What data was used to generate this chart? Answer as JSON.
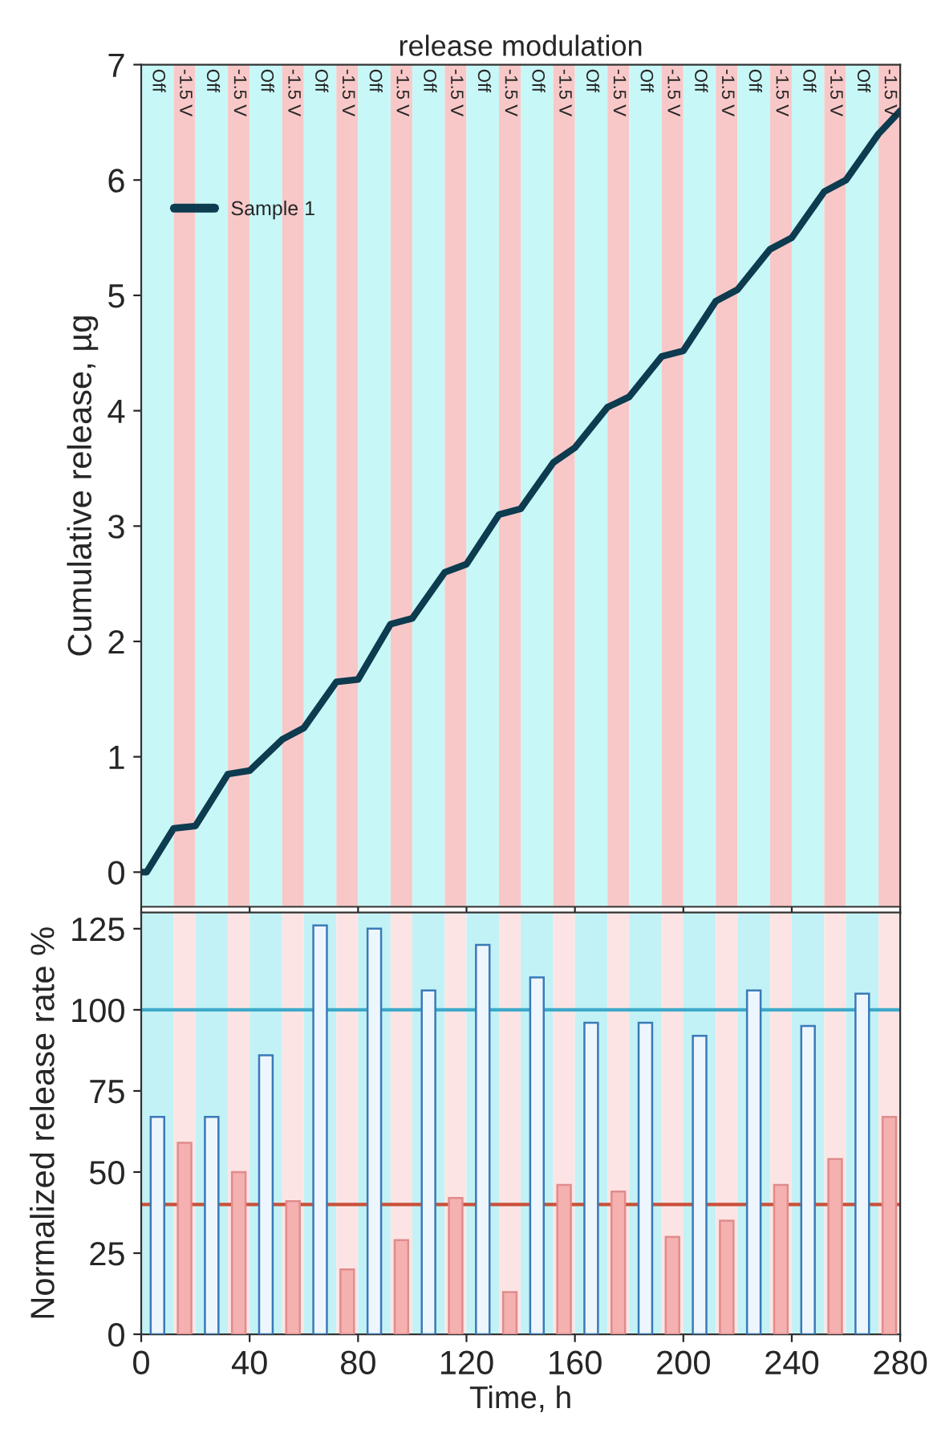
{
  "chart_data": [
    {
      "type": "line",
      "title": "release modulation",
      "ylabel": "Cumulative release, µg",
      "series": [
        {
          "name": "Sample 1",
          "color": "#0d3b4f",
          "x": [
            0,
            2,
            12,
            20,
            32,
            40,
            52,
            60,
            72,
            80,
            92,
            100,
            112,
            120,
            132,
            140,
            152,
            160,
            172,
            180,
            192,
            200,
            212,
            220,
            232,
            240,
            252,
            260,
            272,
            280
          ],
          "values": [
            0.0,
            0.0,
            0.38,
            0.4,
            0.85,
            0.88,
            1.15,
            1.25,
            1.65,
            1.67,
            2.15,
            2.2,
            2.6,
            2.67,
            3.1,
            3.15,
            3.55,
            3.68,
            4.03,
            4.12,
            4.47,
            4.52,
            4.95,
            5.05,
            5.4,
            5.5,
            5.9,
            6.0,
            6.4,
            6.6
          ]
        }
      ],
      "xlim": [
        0,
        280
      ],
      "xticks": [
        0,
        40,
        80,
        120,
        160,
        200,
        240,
        280
      ],
      "ylim": [
        -0.3,
        7
      ],
      "yticks": [
        0,
        1,
        2,
        3,
        4,
        5,
        6,
        7
      ],
      "tick_labels": "y",
      "legend": "top left",
      "grid": false,
      "line_style": "solid",
      "marker": "none",
      "bands": [
        {
          "axis": "x",
          "from": 0,
          "to": 12,
          "label": "Off",
          "color": "#c8f7f7"
        },
        {
          "axis": "x",
          "from": 12,
          "to": 20,
          "label": "-1.5 V",
          "color": "#f8c8c8"
        },
        {
          "axis": "x",
          "from": 20,
          "to": 32,
          "label": "Off",
          "color": "#c8f7f7"
        },
        {
          "axis": "x",
          "from": 32,
          "to": 40,
          "label": "-1.5 V",
          "color": "#f8c8c8"
        },
        {
          "axis": "x",
          "from": 40,
          "to": 52,
          "label": "Off",
          "color": "#c8f7f7"
        },
        {
          "axis": "x",
          "from": 52,
          "to": 60,
          "label": "-1.5 V",
          "color": "#f8c8c8"
        },
        {
          "axis": "x",
          "from": 60,
          "to": 72,
          "label": "Off",
          "color": "#c8f7f7"
        },
        {
          "axis": "x",
          "from": 72,
          "to": 80,
          "label": "-1.5 V",
          "color": "#f8c8c8"
        },
        {
          "axis": "x",
          "from": 80,
          "to": 92,
          "label": "Off",
          "color": "#c8f7f7"
        },
        {
          "axis": "x",
          "from": 92,
          "to": 100,
          "label": "-1.5 V",
          "color": "#f8c8c8"
        },
        {
          "axis": "x",
          "from": 100,
          "to": 112,
          "label": "Off",
          "color": "#c8f7f7"
        },
        {
          "axis": "x",
          "from": 112,
          "to": 120,
          "label": "-1.5 V",
          "color": "#f8c8c8"
        },
        {
          "axis": "x",
          "from": 120,
          "to": 132,
          "label": "Off",
          "color": "#c8f7f7"
        },
        {
          "axis": "x",
          "from": 132,
          "to": 140,
          "label": "-1.5 V",
          "color": "#f8c8c8"
        },
        {
          "axis": "x",
          "from": 140,
          "to": 152,
          "label": "Off",
          "color": "#c8f7f7"
        },
        {
          "axis": "x",
          "from": 152,
          "to": 160,
          "label": "-1.5 V",
          "color": "#f8c8c8"
        },
        {
          "axis": "x",
          "from": 160,
          "to": 172,
          "label": "Off",
          "color": "#c8f7f7"
        },
        {
          "axis": "x",
          "from": 172,
          "to": 180,
          "label": "-1.5 V",
          "color": "#f8c8c8"
        },
        {
          "axis": "x",
          "from": 180,
          "to": 192,
          "label": "Off",
          "color": "#c8f7f7"
        },
        {
          "axis": "x",
          "from": 192,
          "to": 200,
          "label": "-1.5 V",
          "color": "#f8c8c8"
        },
        {
          "axis": "x",
          "from": 200,
          "to": 212,
          "label": "Off",
          "color": "#c8f7f7"
        },
        {
          "axis": "x",
          "from": 212,
          "to": 220,
          "label": "-1.5 V",
          "color": "#f8c8c8"
        },
        {
          "axis": "x",
          "from": 220,
          "to": 232,
          "label": "Off",
          "color": "#c8f7f7"
        },
        {
          "axis": "x",
          "from": 232,
          "to": 240,
          "label": "-1.5 V",
          "color": "#f8c8c8"
        },
        {
          "axis": "x",
          "from": 240,
          "to": 252,
          "label": "Off",
          "color": "#c8f7f7"
        },
        {
          "axis": "x",
          "from": 252,
          "to": 260,
          "label": "-1.5 V",
          "color": "#f8c8c8"
        },
        {
          "axis": "x",
          "from": 260,
          "to": 272,
          "label": "Off",
          "color": "#c8f7f7"
        },
        {
          "axis": "x",
          "from": 272,
          "to": 280,
          "label": "-1.5 V",
          "color": "#f8c8c8"
        }
      ]
    },
    {
      "type": "bar",
      "xlabel": "Time, h",
      "ylabel": "Normalized release rate %",
      "series": [
        {
          "color": "#eef6fd",
          "x": [
            6,
            26,
            46,
            66,
            86,
            106,
            126,
            146,
            166,
            186,
            206,
            226,
            246,
            266
          ],
          "values": [
            67,
            67,
            86,
            126,
            125,
            106,
            120,
            110,
            96,
            96,
            92,
            106,
            95,
            105
          ]
        },
        {
          "color": "#f5b0b0",
          "x": [
            16,
            36,
            56,
            76,
            96,
            116,
            136,
            156,
            176,
            196,
            216,
            236,
            256,
            276
          ],
          "values": [
            59,
            50,
            41,
            20,
            29,
            42,
            13,
            46,
            44,
            30,
            35,
            46,
            54,
            67
          ]
        }
      ],
      "xlim": [
        0,
        280
      ],
      "xticks": [
        0,
        40,
        80,
        120,
        160,
        200,
        240,
        280
      ],
      "ylim": [
        0,
        130
      ],
      "yticks": [
        0,
        25,
        50,
        75,
        100,
        125
      ],
      "grid": false,
      "ref_lines": [
        {
          "axis": "y",
          "value": 100,
          "color": "#3fa9c9"
        },
        {
          "axis": "y",
          "value": 40,
          "color": "#c9503a"
        }
      ],
      "bands": [
        {
          "axis": "x",
          "from": 0,
          "to": 12,
          "color": "#c2f2f6"
        },
        {
          "axis": "x",
          "from": 12,
          "to": 20,
          "color": "#fde4e4"
        },
        {
          "axis": "x",
          "from": 20,
          "to": 32,
          "color": "#c2f2f6"
        },
        {
          "axis": "x",
          "from": 32,
          "to": 40,
          "color": "#fde4e4"
        },
        {
          "axis": "x",
          "from": 40,
          "to": 52,
          "color": "#c2f2f6"
        },
        {
          "axis": "x",
          "from": 52,
          "to": 60,
          "color": "#fde4e4"
        },
        {
          "axis": "x",
          "from": 60,
          "to": 72,
          "color": "#c2f2f6"
        },
        {
          "axis": "x",
          "from": 72,
          "to": 80,
          "color": "#fde4e4"
        },
        {
          "axis": "x",
          "from": 80,
          "to": 92,
          "color": "#c2f2f6"
        },
        {
          "axis": "x",
          "from": 92,
          "to": 100,
          "color": "#fde4e4"
        },
        {
          "axis": "x",
          "from": 100,
          "to": 112,
          "color": "#c2f2f6"
        },
        {
          "axis": "x",
          "from": 112,
          "to": 120,
          "color": "#fde4e4"
        },
        {
          "axis": "x",
          "from": 120,
          "to": 132,
          "color": "#c2f2f6"
        },
        {
          "axis": "x",
          "from": 132,
          "to": 140,
          "color": "#fde4e4"
        },
        {
          "axis": "x",
          "from": 140,
          "to": 152,
          "color": "#c2f2f6"
        },
        {
          "axis": "x",
          "from": 152,
          "to": 160,
          "color": "#fde4e4"
        },
        {
          "axis": "x",
          "from": 160,
          "to": 172,
          "color": "#c2f2f6"
        },
        {
          "axis": "x",
          "from": 172,
          "to": 180,
          "color": "#fde4e4"
        },
        {
          "axis": "x",
          "from": 180,
          "to": 192,
          "color": "#c2f2f6"
        },
        {
          "axis": "x",
          "from": 192,
          "to": 200,
          "color": "#fde4e4"
        },
        {
          "axis": "x",
          "from": 200,
          "to": 212,
          "color": "#c2f2f6"
        },
        {
          "axis": "x",
          "from": 212,
          "to": 220,
          "color": "#fde4e4"
        },
        {
          "axis": "x",
          "from": 220,
          "to": 232,
          "color": "#c2f2f6"
        },
        {
          "axis": "x",
          "from": 232,
          "to": 240,
          "color": "#fde4e4"
        },
        {
          "axis": "x",
          "from": 240,
          "to": 252,
          "color": "#c2f2f6"
        },
        {
          "axis": "x",
          "from": 252,
          "to": 260,
          "color": "#fde4e4"
        },
        {
          "axis": "x",
          "from": 260,
          "to": 272,
          "color": "#c2f2f6"
        },
        {
          "axis": "x",
          "from": 272,
          "to": 280,
          "color": "#fde4e4"
        }
      ]
    }
  ]
}
